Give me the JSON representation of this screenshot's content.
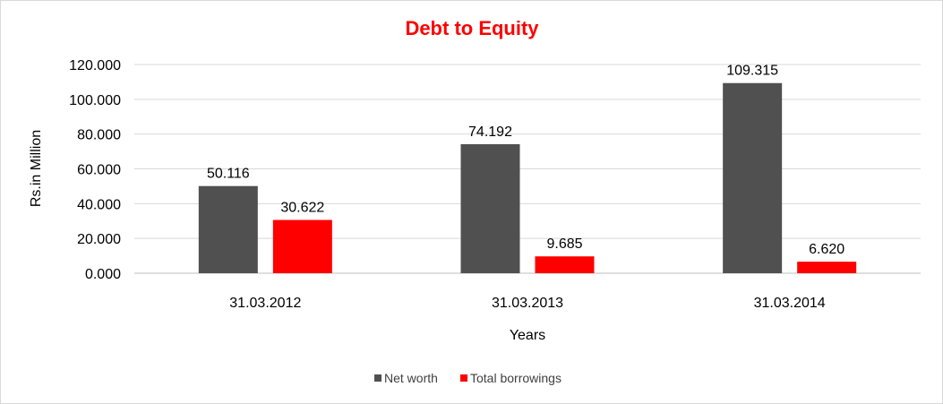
{
  "chart_data": {
    "type": "bar",
    "title": "Debt to Equity",
    "xlabel": "Years",
    "ylabel": "Rs.in Million",
    "categories": [
      "31.03.2012",
      "31.03.2013",
      "31.03.2014"
    ],
    "series": [
      {
        "name": "Net worth",
        "color": "#505050",
        "values": [
          50.116,
          74.192,
          109.315
        ],
        "labels": [
          "50.116",
          "74.192",
          "109.315"
        ]
      },
      {
        "name": "Total borrowings",
        "color": "#ff0000",
        "values": [
          30.622,
          9.685,
          6.62
        ],
        "labels": [
          "30.622",
          "9.685",
          "6.620"
        ]
      }
    ],
    "ylim": [
      0,
      120
    ],
    "yticks": [
      0,
      20,
      40,
      60,
      80,
      100,
      120
    ],
    "ytick_labels": [
      "0.000",
      "20.000",
      "40.000",
      "60.000",
      "80.000",
      "100.000",
      "120.000"
    ],
    "grid": true,
    "legend_position": "bottom",
    "title_color": "#ff0000"
  }
}
